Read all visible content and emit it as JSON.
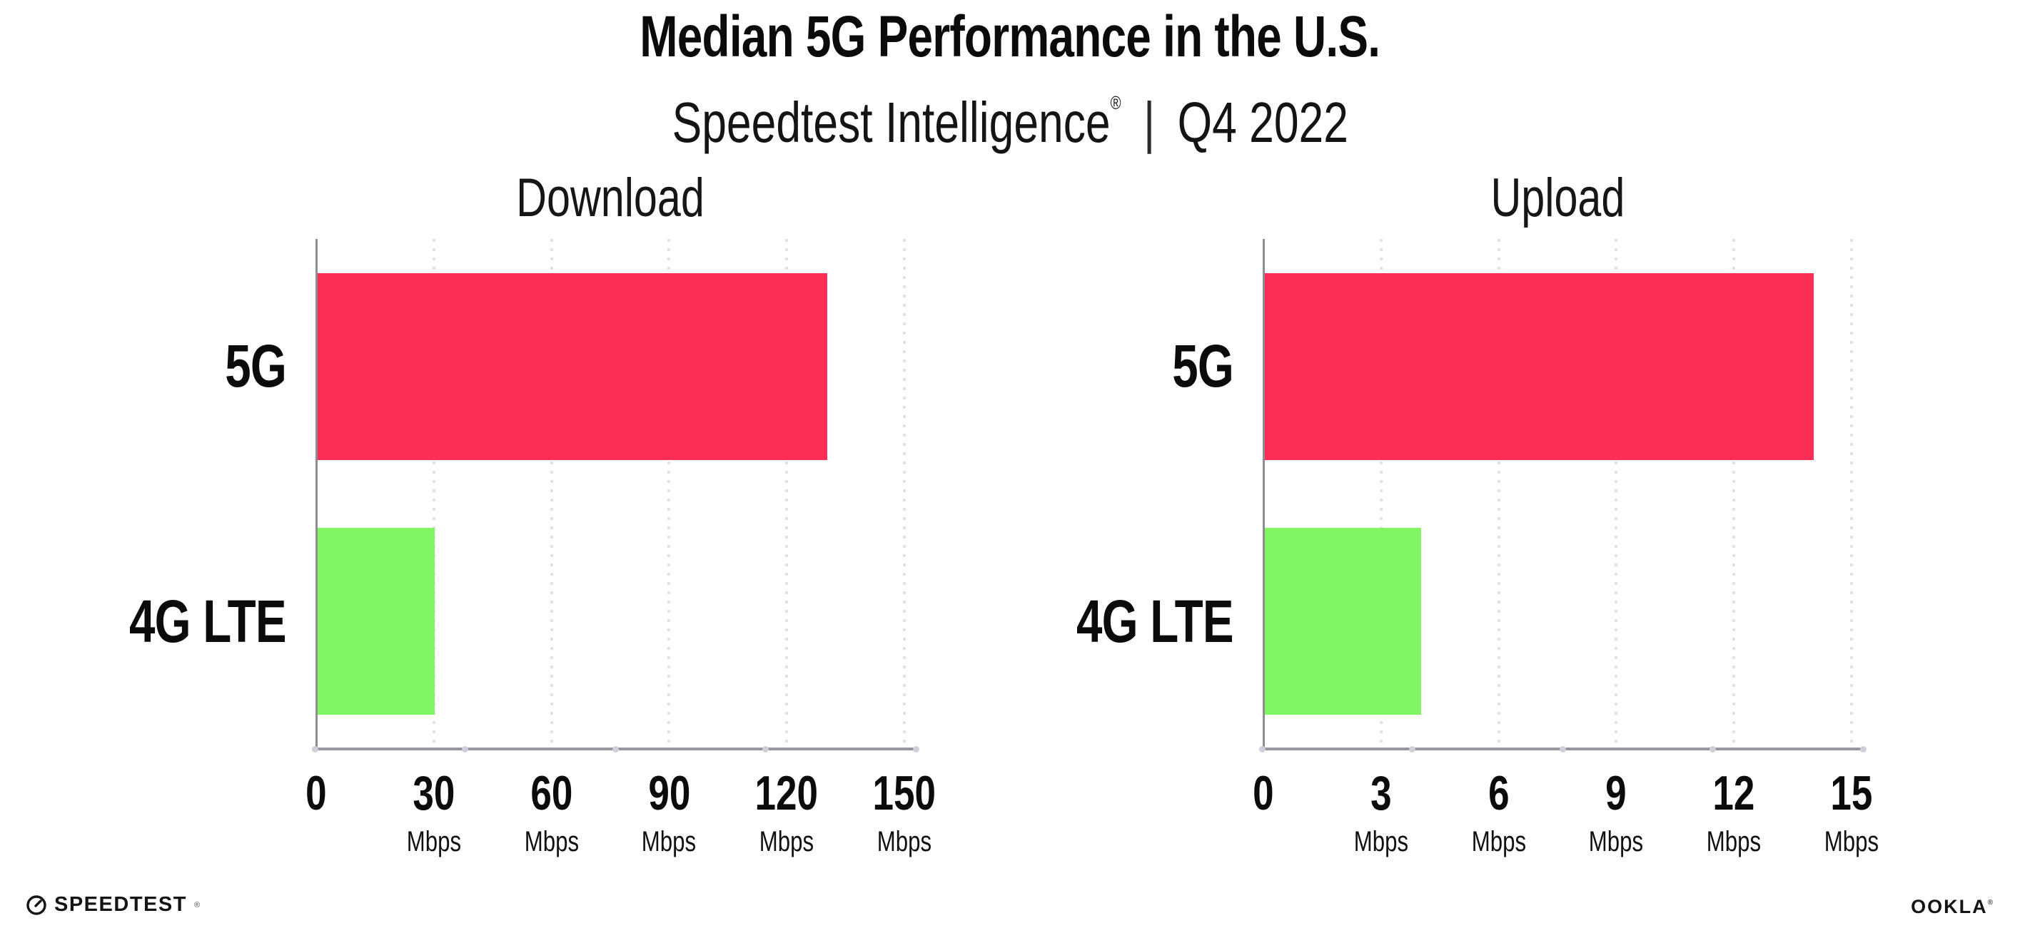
{
  "header": {
    "title": "Median 5G Performance in the U.S.",
    "subtitle_brand": "Speedtest Intelligence",
    "subtitle_trademark": "®",
    "subtitle_separator": "|",
    "subtitle_period": "Q4 2022"
  },
  "colors": {
    "bar_5g": "#fc2e56",
    "bar_4g_lte": "#82f563",
    "x_axis_line": "#96969d",
    "y_axis_line": "#8d8d94",
    "gridline_dots": "#e2e2ec",
    "text": "#0b0b0b"
  },
  "chart_data": [
    {
      "type": "bar",
      "orientation": "horizontal",
      "title": "Download",
      "categories": [
        "5G",
        "4G LTE"
      ],
      "values": [
        130,
        30
      ],
      "value_unit": "Mbps",
      "xlim": [
        0,
        150
      ],
      "xticks": [
        0,
        30,
        60,
        90,
        120,
        150
      ],
      "xtick_unit": "Mbps",
      "grid": "vertical-dotted",
      "legend": "none",
      "bar_colors": [
        "#fc2e56",
        "#82f563"
      ]
    },
    {
      "type": "bar",
      "orientation": "horizontal",
      "title": "Upload",
      "categories": [
        "5G",
        "4G LTE"
      ],
      "values": [
        14,
        4
      ],
      "value_unit": "Mbps",
      "xlim": [
        0,
        15
      ],
      "xticks": [
        0,
        3,
        6,
        9,
        12,
        15
      ],
      "xtick_unit": "Mbps",
      "grid": "vertical-dotted",
      "legend": "none",
      "bar_colors": [
        "#fc2e56",
        "#82f563"
      ]
    }
  ],
  "footer": {
    "speedtest_logo_text": "SPEEDTEST",
    "speedtest_trademark": "®",
    "ookla_logo_text": "OOKLA",
    "ookla_trademark": "®"
  }
}
